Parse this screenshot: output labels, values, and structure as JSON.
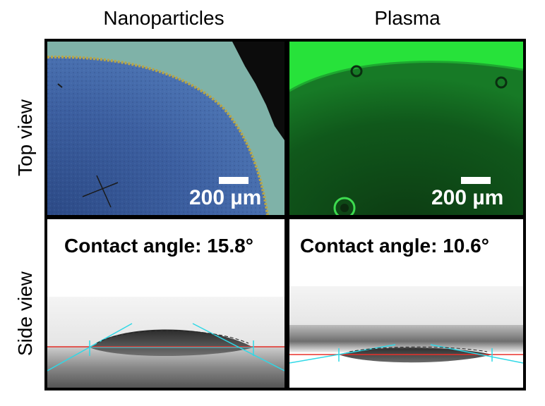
{
  "columns": [
    "Nanoparticles",
    "Plasma"
  ],
  "rows": [
    "Top view",
    "Side view"
  ],
  "scale_bar_label": "200 µm",
  "panels": {
    "nanoparticles_contact": "Contact angle: 15.8°",
    "plasma_contact": "Contact angle: 10.6°"
  },
  "colors": {
    "border": "#000000",
    "nanoparticle_surface": "#3f62a6",
    "nanoparticle_background": "#7fb2a8",
    "plasma_fluorescence": "#27e23a",
    "baseline_red": "#e8302a",
    "tangent_cyan": "#2fd8e6"
  }
}
